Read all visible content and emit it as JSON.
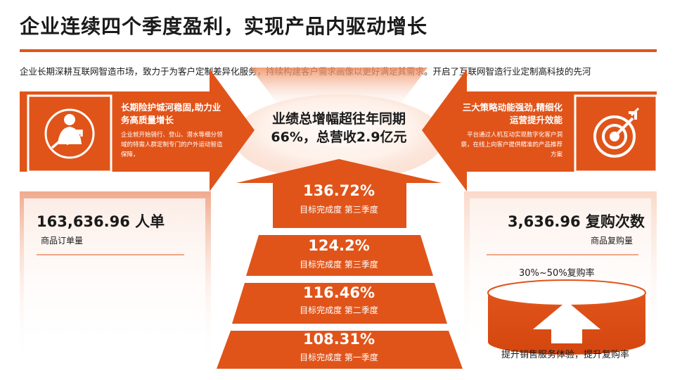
{
  "header": {
    "title": "企业连续四个季度盈利，实现产品内驱动增长",
    "subtitle": "企业长期深耕互联网智造市场，致力于为客户定制差异化服务，持续构建客户需求画像以更好满足其需求。开启了互联网智造行业定制高科技的先河"
  },
  "left_panel": {
    "heading": "长期险护城河稳固,助力业务高质量增长",
    "body": "企业就开始骑行、登山、潜水等细分领域的特需人群定制专门的户外运动智造保障，"
  },
  "right_panel": {
    "heading": "三大策略动能强劲,精细化运营提升效能",
    "body": "平台通过人机互动实现数字化客户洞察，在线上向客户提供精准的产品推荐方案"
  },
  "center": {
    "headline": "业绩总增幅超往年同期66%，总营收2.9亿元"
  },
  "orders": {
    "value": "163,636.96 人单",
    "label": "商品订单量"
  },
  "repurchase": {
    "value": "3,636.96 复购次数",
    "label": "商品复购量",
    "rate": "30%~50%复购率",
    "caption": "提升销售服务体验，提升复购率"
  },
  "steps": [
    {
      "value": "136.72%",
      "label": "目标完成度 第三季度"
    },
    {
      "value": "124.2%",
      "label": "目标完成度 第三季度"
    },
    {
      "value": "116.46%",
      "label": "目标完成度 第二季度"
    },
    {
      "value": "108.31%",
      "label": "目标完成度 第一季度"
    }
  ],
  "icons": {
    "left": "businessman-growth-icon",
    "right": "target-arrow-icon"
  },
  "colors": {
    "accent": "#e0541a",
    "text": "#1a1a1a",
    "on_accent": "#ffffff"
  }
}
